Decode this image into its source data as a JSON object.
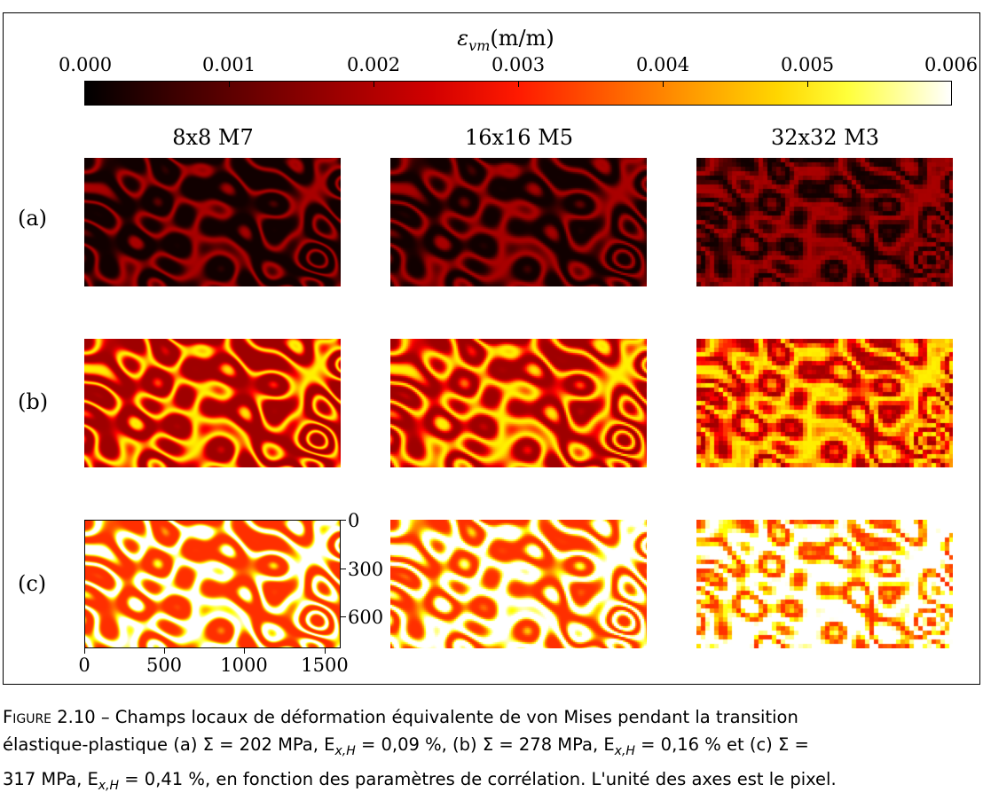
{
  "colorbar": {
    "label_symbol": "ε",
    "label_sub": "vm",
    "label_unit": "(m/m)",
    "ticks": [
      "0.000",
      "0.001",
      "0.002",
      "0.003",
      "0.004",
      "0.005",
      "0.006"
    ],
    "range": [
      0.0,
      0.006
    ],
    "colormap": "hot"
  },
  "columns": [
    {
      "title": "8x8 M7"
    },
    {
      "title": "16x16 M5"
    },
    {
      "title": "32x32 M3"
    }
  ],
  "rows": [
    {
      "label": "(a)",
      "level": 0.25
    },
    {
      "label": "(b)",
      "level": 0.55
    },
    {
      "label": "(c)",
      "level": 0.85
    }
  ],
  "axes": {
    "y_ticks": [
      "0",
      "300",
      "600"
    ],
    "x_ticks": [
      "0",
      "500",
      "1000",
      "1500"
    ],
    "x_range": [
      0,
      1600
    ],
    "y_range": [
      0,
      800
    ]
  },
  "caption": {
    "figure_label": "Figure 2.10",
    "line1": " – Champs locaux de déformation équivalente de von Mises pendant la transition",
    "line2": "élastique-plastique (a) Σ = 202 MPa, E",
    "line2_sub": "x,H",
    "line2_b": " = 0,09 %, (b) Σ = 278 MPa, E",
    "line2_sub2": "x,H",
    "line2_c": " = 0,16 % et (c) Σ =",
    "line3": "317 MPa, E",
    "line3_sub": "x,H",
    "line3_b": " = 0,41 %, en fonction des paramètres de corrélation. L'unité des axes est le pixel."
  }
}
